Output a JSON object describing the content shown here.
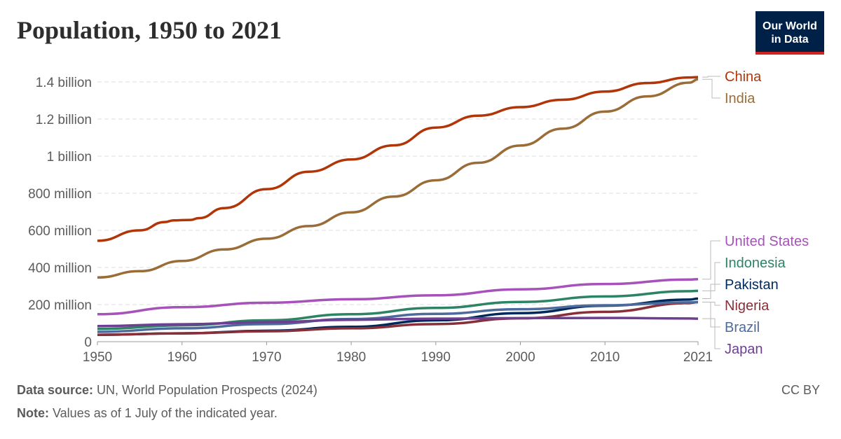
{
  "title": "Population, 1950 to 2021",
  "logo": {
    "line1": "Our World",
    "line2": "in Data"
  },
  "footer": {
    "source_label": "Data source:",
    "source": " UN, World Population Prospects (2024)",
    "note_label": "Note:",
    "note": " Values as of 1 July of the indicated year.",
    "license": "CC BY"
  },
  "chart_data": {
    "type": "line",
    "title": "Population, 1950 to 2021",
    "xlim": [
      1950,
      2021
    ],
    "ylim": [
      0,
      1400000000
    ],
    "x_ticks": [
      "1950",
      "1960",
      "1970",
      "1980",
      "1990",
      "2000",
      "2010",
      "2021"
    ],
    "y_ticks": [
      {
        "v": 0,
        "label": "0"
      },
      {
        "v": 200000000,
        "label": "200 million"
      },
      {
        "v": 400000000,
        "label": "400 million"
      },
      {
        "v": 600000000,
        "label": "600 million"
      },
      {
        "v": 800000000,
        "label": "800 million"
      },
      {
        "v": 1000000000,
        "label": "1 billion"
      },
      {
        "v": 1200000000,
        "label": "1.2 billion"
      },
      {
        "v": 1400000000,
        "label": "1.4 billion"
      }
    ],
    "grid": "horizontal dashed",
    "legend": "right, inline labels",
    "series": [
      {
        "name": "China",
        "color": "#b13507",
        "x": [
          1950,
          1955,
          1958,
          1959,
          1961,
          1962,
          1965,
          1970,
          1975,
          1980,
          1985,
          1990,
          1995,
          2000,
          2005,
          2010,
          2015,
          2020,
          2021
        ],
        "values_millions": [
          544,
          600,
          645,
          654,
          656,
          666,
          720,
          822,
          916,
          982,
          1058,
          1154,
          1218,
          1264,
          1304,
          1348,
          1394,
          1424,
          1426
        ]
      },
      {
        "name": "India",
        "color": "#9a6d38",
        "x": [
          1950,
          1955,
          1960,
          1965,
          1970,
          1975,
          1980,
          1985,
          1990,
          1995,
          2000,
          2005,
          2010,
          2015,
          2020,
          2021
        ],
        "values_millions": [
          346,
          380,
          435,
          497,
          555,
          623,
          697,
          782,
          870,
          964,
          1057,
          1148,
          1240,
          1322,
          1396,
          1414
        ]
      },
      {
        "name": "United States",
        "color": "#a652ba",
        "x": [
          1950,
          1960,
          1970,
          1980,
          1990,
          2000,
          2010,
          2020,
          2021
        ],
        "values_millions": [
          148,
          186,
          210,
          229,
          250,
          282,
          311,
          335,
          337
        ]
      },
      {
        "name": "Indonesia",
        "color": "#2c8465",
        "x": [
          1950,
          1960,
          1970,
          1980,
          1990,
          2000,
          2010,
          2020,
          2021
        ],
        "values_millions": [
          69,
          88,
          115,
          148,
          182,
          214,
          244,
          272,
          274
        ]
      },
      {
        "name": "Pakistan",
        "color": "#00295b",
        "x": [
          1950,
          1960,
          1970,
          1980,
          1990,
          2000,
          2010,
          2020,
          2021
        ],
        "values_millions": [
          37,
          45,
          59,
          80,
          115,
          154,
          194,
          227,
          232
        ]
      },
      {
        "name": "Nigeria",
        "color": "#883039",
        "x": [
          1950,
          1960,
          1970,
          1980,
          1990,
          2000,
          2010,
          2020,
          2021
        ],
        "values_millions": [
          37,
          45,
          56,
          72,
          95,
          126,
          161,
          208,
          213
        ]
      },
      {
        "name": "Brazil",
        "color": "#4c6a9c",
        "x": [
          1950,
          1960,
          1970,
          1980,
          1990,
          2000,
          2010,
          2020,
          2021
        ],
        "values_millions": [
          53,
          72,
          95,
          122,
          150,
          175,
          196,
          212,
          213
        ]
      },
      {
        "name": "Japan",
        "color": "#6d3e91",
        "x": [
          1950,
          1960,
          1970,
          1980,
          1990,
          2000,
          2010,
          2020,
          2021
        ],
        "values_millions": [
          84,
          94,
          105,
          118,
          124,
          127,
          128,
          125,
          124
        ]
      }
    ]
  }
}
